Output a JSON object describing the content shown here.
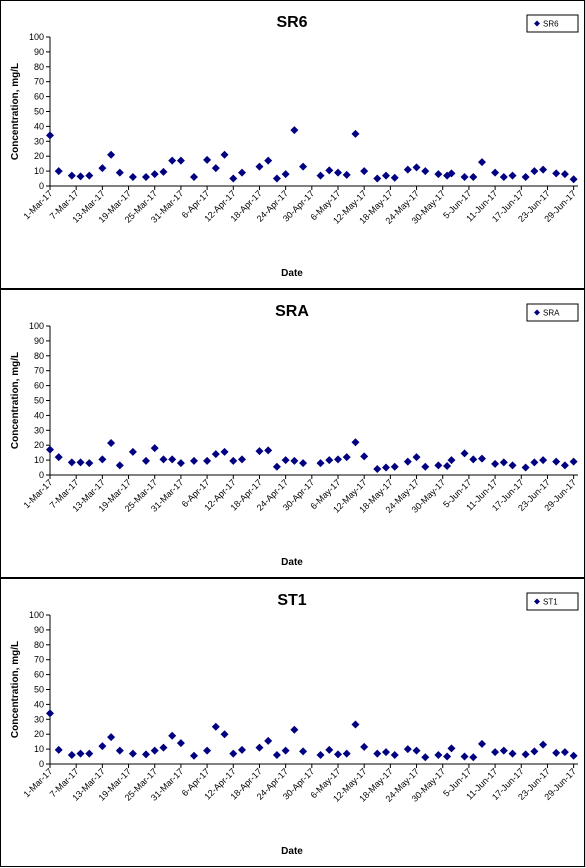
{
  "chart_data": [
    {
      "type": "scatter",
      "title": "SR6",
      "x_label": "Date",
      "y_label": "Concentration, mg/L",
      "legend": "top-right",
      "xlim": [
        "1-Mar-17",
        "30-Jun-17"
      ],
      "xticks": [
        "1-Mar-17",
        "7-Mar-17",
        "13-Mar-17",
        "19-Mar-17",
        "25-Mar-17",
        "31-Mar-17",
        "6-Apr-17",
        "12-Apr-17",
        "18-Apr-17",
        "24-Apr-17",
        "30-Apr-17",
        "6-May-17",
        "12-May-17",
        "18-May-17",
        "24-May-17",
        "30-May-17",
        "5-Jun-17",
        "11-Jun-17",
        "17-Jun-17",
        "23-Jun-17",
        "29-Jun-17"
      ],
      "ylim": [
        0,
        100
      ],
      "yticks": [
        0,
        10,
        20,
        30,
        40,
        50,
        60,
        70,
        80,
        90,
        100
      ],
      "series": [
        {
          "name": "SR6",
          "color": "#000080",
          "x": [
            "1-Mar-17",
            "3-Mar-17",
            "6-Mar-17",
            "8-Mar-17",
            "10-Mar-17",
            "13-Mar-17",
            "15-Mar-17",
            "17-Mar-17",
            "20-Mar-17",
            "23-Mar-17",
            "25-Mar-17",
            "27-Mar-17",
            "29-Mar-17",
            "31-Mar-17",
            "3-Apr-17",
            "6-Apr-17",
            "8-Apr-17",
            "10-Apr-17",
            "12-Apr-17",
            "14-Apr-17",
            "18-Apr-17",
            "20-Apr-17",
            "22-Apr-17",
            "24-Apr-17",
            "26-Apr-17",
            "28-Apr-17",
            "2-May-17",
            "4-May-17",
            "6-May-17",
            "8-May-17",
            "10-May-17",
            "12-May-17",
            "15-May-17",
            "17-May-17",
            "19-May-17",
            "22-May-17",
            "24-May-17",
            "26-May-17",
            "29-May-17",
            "31-May-17",
            "1-Jun-17",
            "4-Jun-17",
            "6-Jun-17",
            "8-Jun-17",
            "11-Jun-17",
            "13-Jun-17",
            "15-Jun-17",
            "18-Jun-17",
            "20-Jun-17",
            "22-Jun-17",
            "25-Jun-17",
            "27-Jun-17",
            "29-Jun-17"
          ],
          "values": [
            34,
            10,
            7,
            6.5,
            7,
            12,
            21,
            9,
            6,
            6,
            8,
            9.5,
            17,
            17,
            6,
            17.5,
            12,
            21,
            5,
            9,
            13,
            17,
            5,
            8,
            37.5,
            13,
            7,
            10.5,
            9,
            7.5,
            35,
            10,
            5,
            7,
            5.5,
            11,
            12.5,
            10,
            8,
            7,
            8.5,
            6,
            6,
            16,
            9,
            6,
            7,
            6,
            10,
            11,
            8.5,
            8,
            4.5
          ]
        }
      ]
    },
    {
      "type": "scatter",
      "title": "SRA",
      "x_label": "Date",
      "y_label": "Concentration, mg/L",
      "legend": "top-right",
      "xlim": [
        "1-Mar-17",
        "30-Jun-17"
      ],
      "xticks": [
        "1-Mar-17",
        "7-Mar-17",
        "13-Mar-17",
        "19-Mar-17",
        "25-Mar-17",
        "31-Mar-17",
        "6-Apr-17",
        "12-Apr-17",
        "18-Apr-17",
        "24-Apr-17",
        "30-Apr-17",
        "6-May-17",
        "12-May-17",
        "18-May-17",
        "24-May-17",
        "30-May-17",
        "5-Jun-17",
        "11-Jun-17",
        "17-Jun-17",
        "23-Jun-17",
        "29-Jun-17"
      ],
      "ylim": [
        0,
        100
      ],
      "yticks": [
        0,
        10,
        20,
        30,
        40,
        50,
        60,
        70,
        80,
        90,
        100
      ],
      "series": [
        {
          "name": "SRA",
          "color": "#000080",
          "x": [
            "1-Mar-17",
            "3-Mar-17",
            "6-Mar-17",
            "8-Mar-17",
            "10-Mar-17",
            "13-Mar-17",
            "15-Mar-17",
            "17-Mar-17",
            "20-Mar-17",
            "23-Mar-17",
            "25-Mar-17",
            "27-Mar-17",
            "29-Mar-17",
            "31-Mar-17",
            "3-Apr-17",
            "6-Apr-17",
            "8-Apr-17",
            "10-Apr-17",
            "12-Apr-17",
            "14-Apr-17",
            "18-Apr-17",
            "20-Apr-17",
            "22-Apr-17",
            "24-Apr-17",
            "26-Apr-17",
            "28-Apr-17",
            "2-May-17",
            "4-May-17",
            "6-May-17",
            "8-May-17",
            "10-May-17",
            "12-May-17",
            "15-May-17",
            "17-May-17",
            "19-May-17",
            "22-May-17",
            "24-May-17",
            "26-May-17",
            "29-May-17",
            "31-May-17",
            "1-Jun-17",
            "4-Jun-17",
            "6-Jun-17",
            "8-Jun-17",
            "11-Jun-17",
            "13-Jun-17",
            "15-Jun-17",
            "18-Jun-17",
            "20-Jun-17",
            "22-Jun-17",
            "25-Jun-17",
            "27-Jun-17",
            "29-Jun-17"
          ],
          "values": [
            17,
            12,
            8.5,
            8.5,
            8,
            10.5,
            21.5,
            6.5,
            15.5,
            9.5,
            18,
            10.5,
            10.5,
            8,
            9.5,
            9.5,
            14,
            15.5,
            9.5,
            10.5,
            16,
            16.5,
            5.5,
            10,
            9.5,
            8,
            8,
            10,
            10.5,
            12,
            22,
            12.5,
            4,
            5,
            5.5,
            9,
            12,
            5.5,
            6.5,
            6,
            10,
            14.5,
            10.5,
            11,
            7.5,
            8.5,
            6.5,
            5,
            8.5,
            10,
            9,
            6.5,
            9
          ]
        }
      ]
    },
    {
      "type": "scatter",
      "title": "ST1",
      "x_label": "Date",
      "y_label": "Concentration, mg/L",
      "legend": "top-right",
      "xlim": [
        "1-Mar-17",
        "30-Jun-17"
      ],
      "xticks": [
        "1-Mar-17",
        "7-Mar-17",
        "13-Mar-17",
        "19-Mar-17",
        "25-Mar-17",
        "31-Mar-17",
        "6-Apr-17",
        "12-Apr-17",
        "18-Apr-17",
        "24-Apr-17",
        "30-Apr-17",
        "6-May-17",
        "12-May-17",
        "18-May-17",
        "24-May-17",
        "30-May-17",
        "5-Jun-17",
        "11-Jun-17",
        "17-Jun-17",
        "23-Jun-17",
        "29-Jun-17"
      ],
      "ylim": [
        0,
        100
      ],
      "yticks": [
        0,
        10,
        20,
        30,
        40,
        50,
        60,
        70,
        80,
        90,
        100
      ],
      "series": [
        {
          "name": "ST1",
          "color": "#000080",
          "x": [
            "1-Mar-17",
            "3-Mar-17",
            "6-Mar-17",
            "8-Mar-17",
            "10-Mar-17",
            "13-Mar-17",
            "15-Mar-17",
            "17-Mar-17",
            "20-Mar-17",
            "23-Mar-17",
            "25-Mar-17",
            "27-Mar-17",
            "29-Mar-17",
            "31-Mar-17",
            "3-Apr-17",
            "6-Apr-17",
            "8-Apr-17",
            "10-Apr-17",
            "12-Apr-17",
            "14-Apr-17",
            "18-Apr-17",
            "20-Apr-17",
            "22-Apr-17",
            "24-Apr-17",
            "26-Apr-17",
            "28-Apr-17",
            "2-May-17",
            "4-May-17",
            "6-May-17",
            "8-May-17",
            "10-May-17",
            "12-May-17",
            "15-May-17",
            "17-May-17",
            "19-May-17",
            "22-May-17",
            "24-May-17",
            "26-May-17",
            "29-May-17",
            "31-May-17",
            "1-Jun-17",
            "4-Jun-17",
            "6-Jun-17",
            "8-Jun-17",
            "11-Jun-17",
            "13-Jun-17",
            "15-Jun-17",
            "18-Jun-17",
            "20-Jun-17",
            "22-Jun-17",
            "25-Jun-17",
            "27-Jun-17",
            "29-Jun-17"
          ],
          "values": [
            34,
            9.5,
            6,
            7,
            7,
            12,
            18,
            9,
            7,
            6.5,
            9,
            11,
            19,
            14,
            5.5,
            9,
            25,
            20,
            7,
            9.5,
            11,
            15.5,
            6,
            9,
            23,
            8.5,
            6,
            9.5,
            6.5,
            7,
            26.5,
            11.5,
            7,
            8,
            6,
            10,
            9,
            4.5,
            6,
            5,
            10.5,
            5,
            4.5,
            13.5,
            8,
            9,
            7,
            6.5,
            8.5,
            13,
            7.5,
            8,
            5.5
          ]
        }
      ]
    }
  ]
}
